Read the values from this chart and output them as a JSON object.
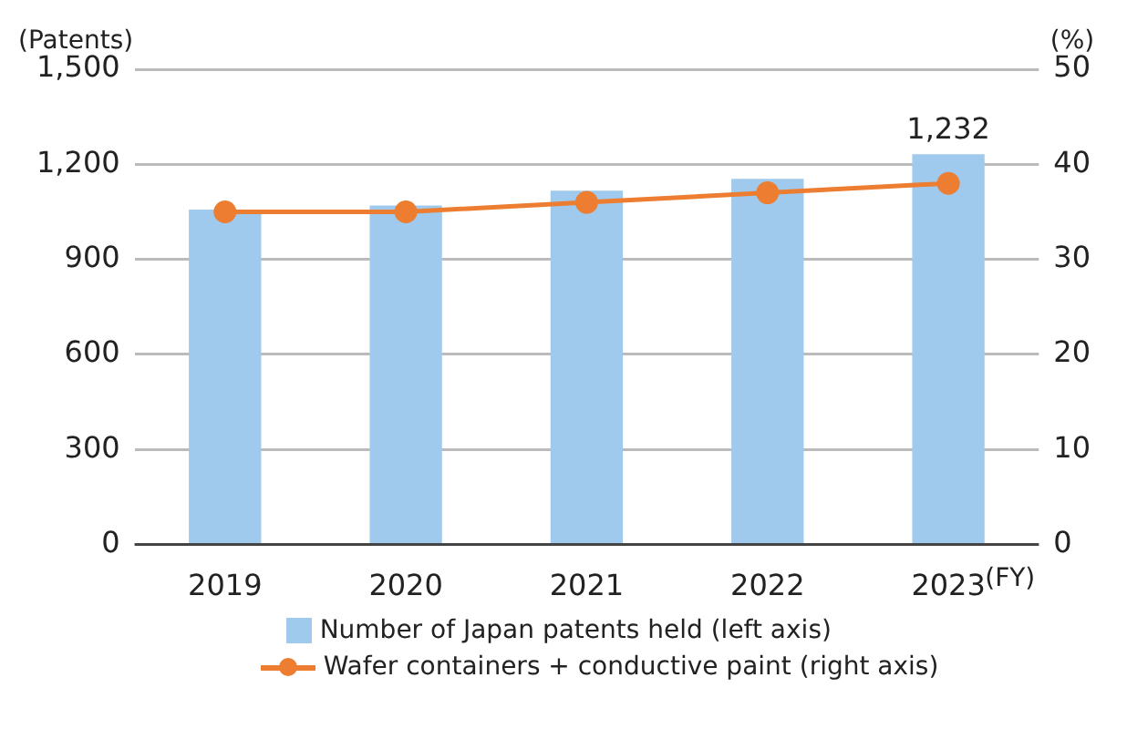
{
  "chart_data": {
    "type": "bar",
    "ylabel": "(Patents)",
    "y2label": "(%)",
    "xlabel": "(FY)",
    "categories": [
      "2019",
      "2020",
      "2021",
      "2022",
      "2023"
    ],
    "series": [
      {
        "name": "Number of Japan patents held (left axis)",
        "color": "#9fcaed",
        "values": [
          1057,
          1070,
          1117,
          1154,
          1232
        ],
        "value_labels": [
          null,
          null,
          null,
          null,
          "1,232"
        ]
      },
      {
        "name": "Wafer containers + conductive paint (right axis)",
        "type": "line",
        "axis": "y2",
        "color": "#ed7d31",
        "marker": "circle",
        "values": [
          35,
          35,
          36,
          37,
          38
        ]
      }
    ],
    "ylim": [
      0,
      1500
    ],
    "yticks": [
      0,
      300,
      600,
      900,
      {
        "value": 1200,
        "label": "1,200"
      },
      {
        "value": 1500,
        "label": "1,500"
      }
    ],
    "y2lim": [
      0,
      50
    ],
    "y2ticks": [
      0,
      10,
      20,
      30,
      40,
      50
    ],
    "grid": "y",
    "legend": "bottom"
  }
}
